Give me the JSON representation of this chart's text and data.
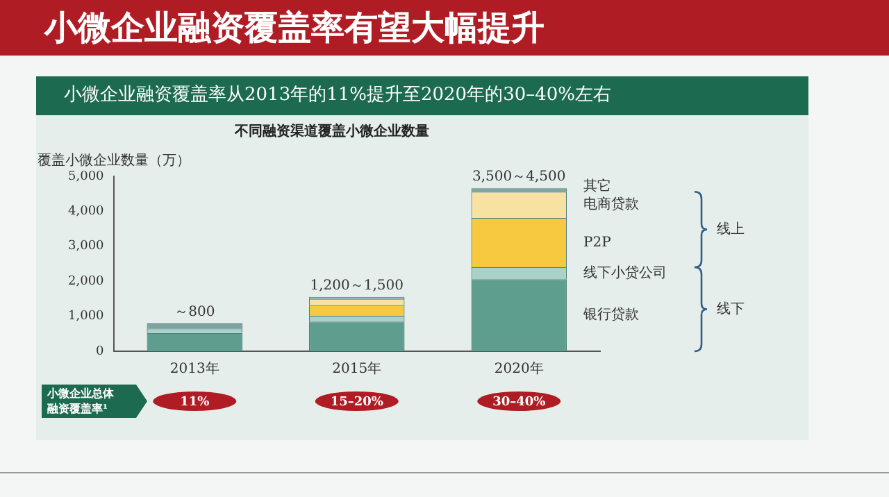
{
  "chart_data": {
    "type": "bar",
    "stacked": true,
    "title": "小微企业融资覆盖率有望大幅提升",
    "subtitle": "小微企业融资覆盖率从2013年的11%提升至2020年的30–40%左右",
    "legend_title": "不同融资渠道覆盖小微企业数量",
    "ylabel": "覆盖小微企业数量（万）",
    "categories": [
      "2013年",
      "2015年",
      "2020年"
    ],
    "series": [
      {
        "name": "银行贷款",
        "color": "#5e9e8f",
        "values": [
          520,
          850,
          2060
        ]
      },
      {
        "name": "线下小贷公司",
        "color": "#a8d2c8",
        "values": [
          130,
          160,
          340
        ]
      },
      {
        "name": "P2P",
        "color": "#f6c93e",
        "values": [
          0,
          310,
          1410
        ]
      },
      {
        "name": "电商贷款",
        "color": "#f8e2a2",
        "values": [
          0,
          175,
          750
        ]
      },
      {
        "name": "其它",
        "color": "#7fa3a0",
        "values": [
          150,
          60,
          100
        ]
      }
    ],
    "totals": [
      "～800",
      "1,200～1,500",
      "3,500～4,500"
    ],
    "annotations": [
      "线上",
      "线下",
      "小微企业总体融资覆盖率¹",
      "11%",
      "15–20%",
      "30–40%"
    ],
    "ylim": [
      0,
      5000
    ],
    "yticks": [
      {
        "value": 0,
        "label": "0"
      },
      {
        "value": 1000,
        "label": "1,000"
      },
      {
        "value": 2000,
        "label": "2,000"
      },
      {
        "value": 3000,
        "label": "3,000"
      },
      {
        "value": 4000,
        "label": "4,000"
      },
      {
        "value": 5000,
        "label": "5,000"
      }
    ],
    "grid": false,
    "legend": "right"
  }
}
